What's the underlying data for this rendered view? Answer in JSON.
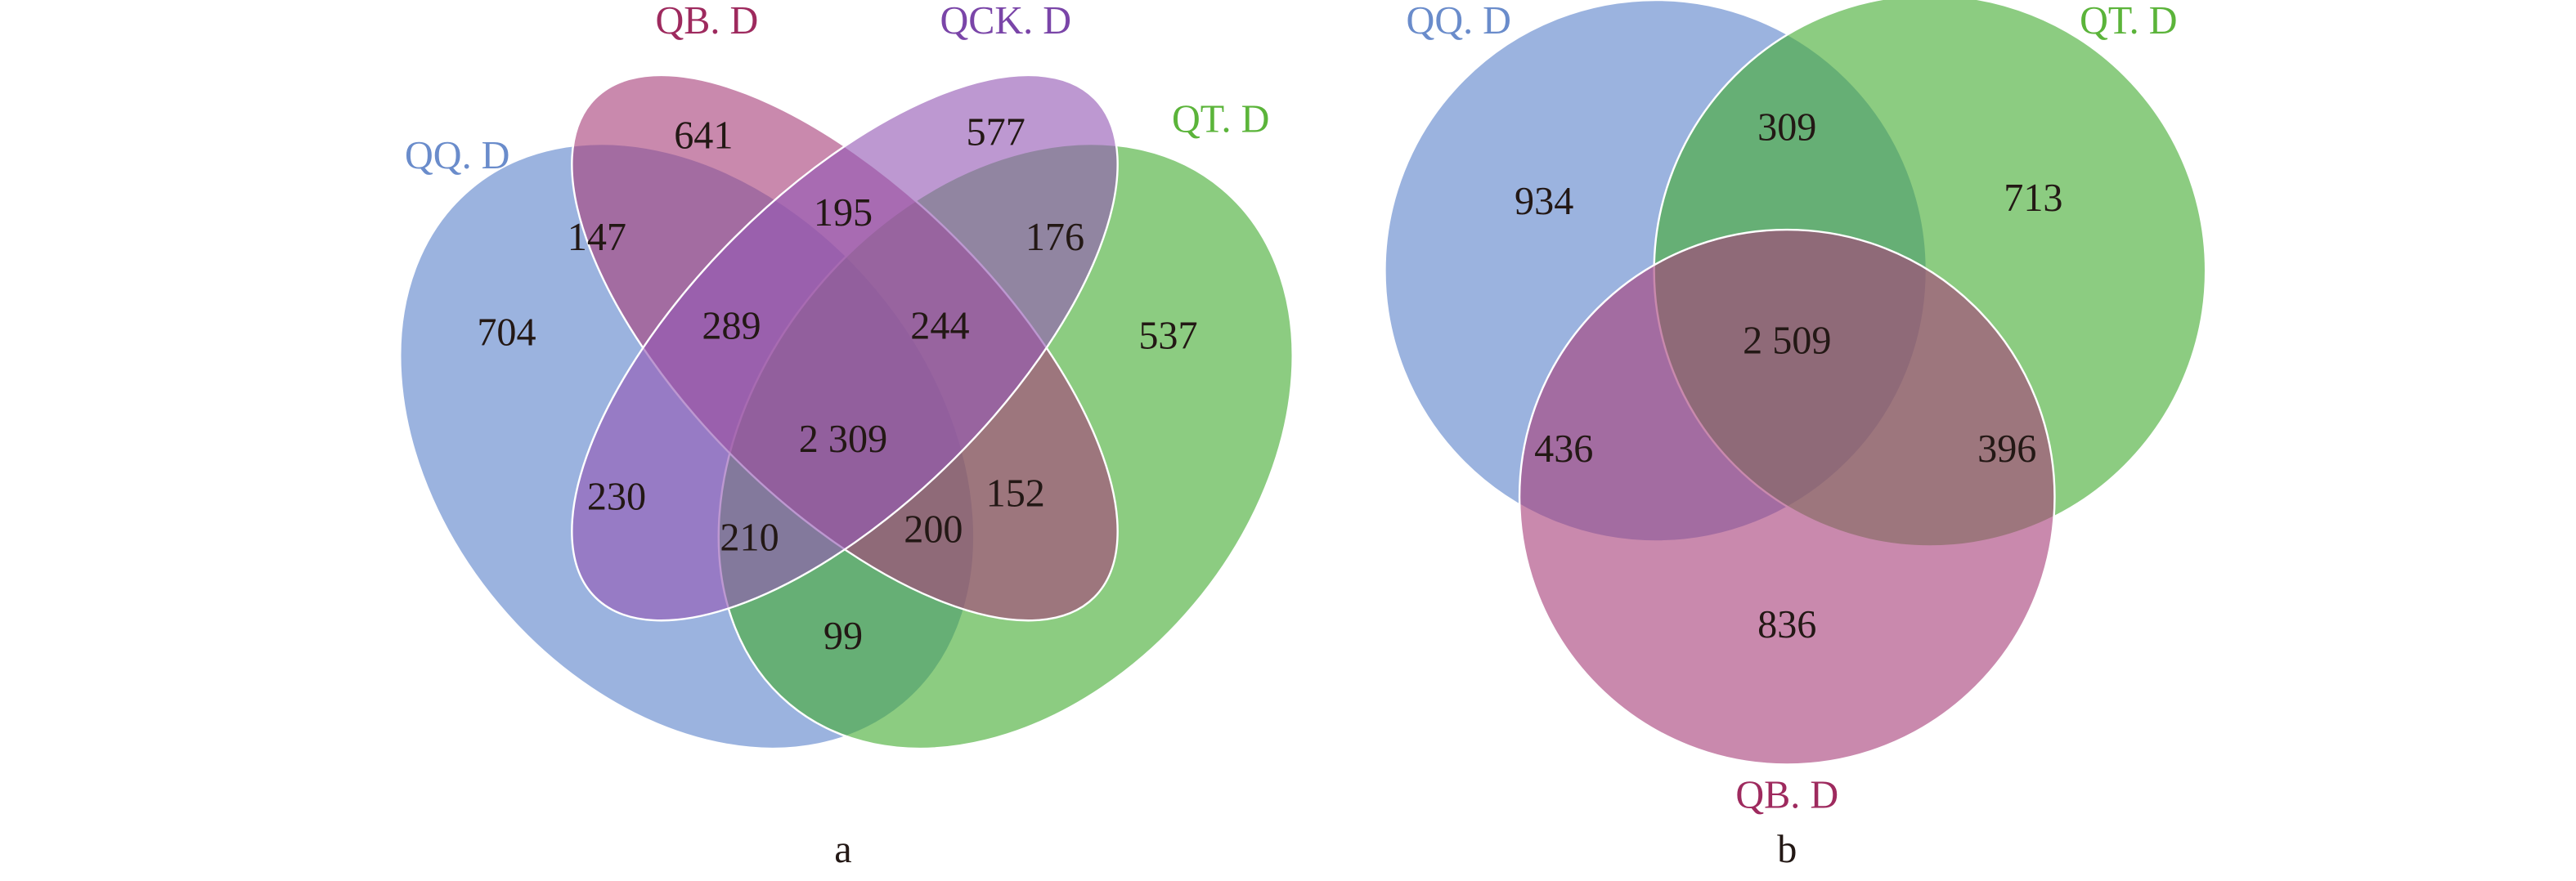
{
  "panel_a": {
    "caption": "a",
    "sets": {
      "QQ": {
        "label": "QQ. D",
        "color": "#5E84CC",
        "label_color": "#6A8CCB"
      },
      "QB": {
        "label": "QB. D",
        "color": "#A8417A",
        "label_color": "#9E2A5E"
      },
      "QCK": {
        "label": "QCK. D",
        "color": "#9458B4",
        "label_color": "#7A45A8"
      },
      "QT": {
        "label": "QT. D",
        "color": "#45AD33",
        "label_color": "#5BB43A"
      }
    },
    "regions": {
      "QQ_only": "704",
      "QB_only": "641",
      "QCK_only": "577",
      "QT_only": "537",
      "QQ_QB": "147",
      "QB_QCK": "195",
      "QCK_QT": "176",
      "QQ_QB_QCK": "289",
      "QB_QCK_QT": "244",
      "all": "2 309",
      "QQ_QCK": "230",
      "QB_QT": "152",
      "QQ_QCK_QT": "210",
      "QQ_QB_QT": "200",
      "QQ_QT": "99"
    }
  },
  "panel_b": {
    "caption": "b",
    "sets": {
      "QQ": {
        "label": "QQ. D",
        "color": "#5E84CC",
        "label_color": "#6A8CCB"
      },
      "QT": {
        "label": "QT. D",
        "color": "#45AD33",
        "label_color": "#5BB43A"
      },
      "QB": {
        "label": "QB. D",
        "color": "#A8417A",
        "label_color": "#9E2A5E"
      }
    },
    "regions": {
      "QQ_only": "934",
      "QQ_QT": "309",
      "QT_only": "713",
      "all": "2 509",
      "QQ_QB": "436",
      "QT_QB": "396",
      "QB_only": "836"
    }
  }
}
